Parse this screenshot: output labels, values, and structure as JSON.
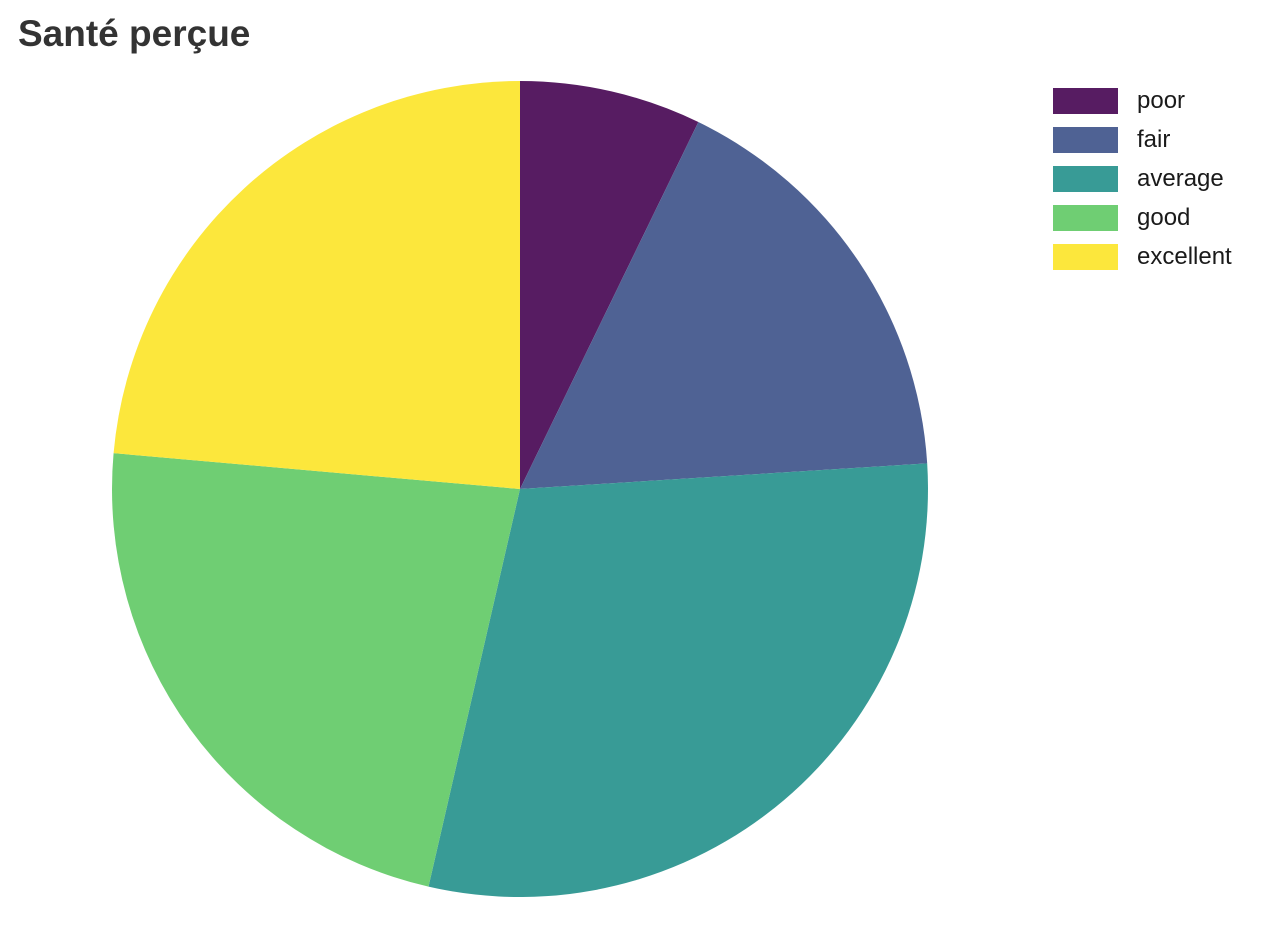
{
  "chart_data": {
    "type": "pie",
    "title": "Santé perçue",
    "legend_position": "top-right",
    "direction": "clockwise",
    "start": "top",
    "slices": [
      {
        "label": "poor",
        "value": 7.2,
        "color": "#571C62"
      },
      {
        "label": "fair",
        "value": 16.8,
        "color": "#4F6294"
      },
      {
        "label": "average",
        "value": 29.6,
        "color": "#389B96"
      },
      {
        "label": "good",
        "value": 22.8,
        "color": "#6FCE73"
      },
      {
        "label": "excellent",
        "value": 23.6,
        "color": "#FCE73C"
      }
    ]
  }
}
